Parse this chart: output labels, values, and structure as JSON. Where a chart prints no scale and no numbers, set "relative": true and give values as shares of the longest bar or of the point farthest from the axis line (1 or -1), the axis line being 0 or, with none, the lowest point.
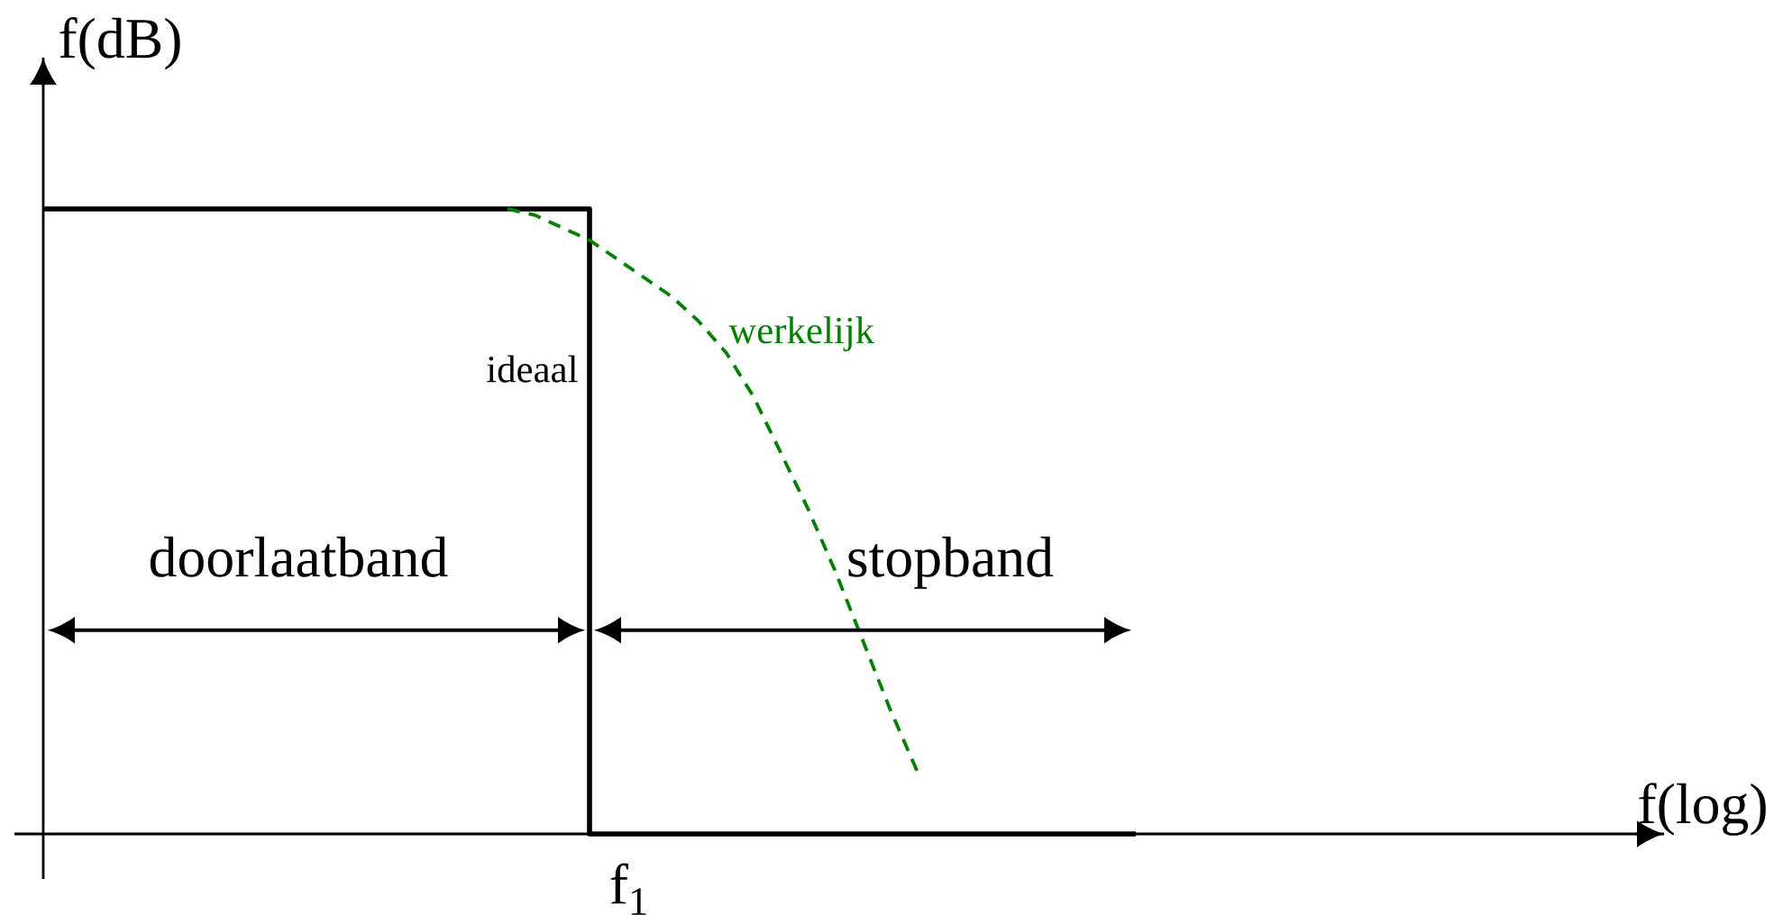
{
  "chart_data": {
    "type": "line",
    "relative": true,
    "xlabel": "f(log)",
    "ylabel": "f(dB)",
    "categories": [
      null,
      null,
      null,
      null,
      null,
      null,
      null,
      null,
      null,
      null,
      null,
      null,
      null,
      null,
      null,
      null,
      null,
      null,
      null,
      null,
      null,
      null,
      null,
      null,
      null,
      null,
      null,
      null,
      null,
      null,
      null,
      null,
      null,
      null,
      null,
      null,
      null,
      null,
      null,
      null,
      null,
      null,
      null,
      null,
      null,
      null,
      null,
      null,
      null,
      null,
      null,
      null,
      null,
      null,
      null,
      null,
      null,
      null,
      null
    ],
    "series": [
      {
        "name": "ideaal",
        "type": "step",
        "color": "#000000",
        "values": [
          1,
          1,
          1,
          1,
          1,
          1,
          1,
          1,
          1,
          1,
          1,
          1,
          1,
          1,
          1,
          1,
          1,
          1,
          1,
          1,
          0,
          0,
          0,
          0,
          0,
          0,
          0,
          0,
          0,
          0,
          0,
          0,
          0,
          0,
          0,
          0,
          0,
          0,
          0,
          0,
          0,
          null,
          null,
          null,
          null,
          null,
          null,
          null,
          null,
          null,
          null,
          null,
          null,
          null,
          null,
          null,
          null,
          null,
          null
        ]
      },
      {
        "name": "werkelijk",
        "color": "#008000",
        "line_style": "dashed",
        "values": [
          null,
          null,
          null,
          null,
          null,
          null,
          null,
          null,
          null,
          null,
          null,
          null,
          null,
          null,
          null,
          null,
          null,
          1.0,
          0.99,
          0.97,
          0.95,
          0.92,
          0.89,
          0.86,
          0.82,
          0.77,
          0.7,
          0.61,
          0.52,
          0.42,
          0.31,
          0.2,
          0.1,
          null,
          null,
          null,
          null,
          null,
          null,
          null,
          null,
          null,
          null,
          null,
          null,
          null,
          null,
          null,
          null,
          null,
          null,
          null,
          null,
          null,
          null,
          null,
          null,
          null,
          null
        ]
      }
    ],
    "annotations": [
      "doorlaatband",
      "stopband",
      "f$_{1}$"
    ]
  }
}
